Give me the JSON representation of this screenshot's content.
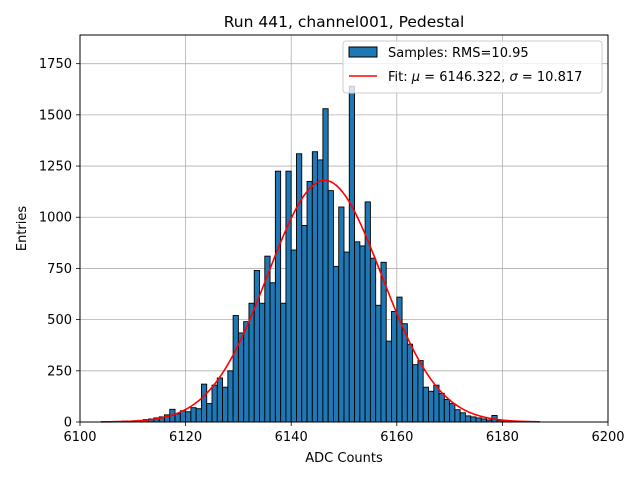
{
  "chart_data": {
    "type": "bar",
    "title": "Run 441, channel001, Pedestal",
    "xlabel": "ADC Counts",
    "ylabel": "Entries",
    "xlim": [
      6100,
      6200
    ],
    "ylim": [
      0,
      1890
    ],
    "xticks": [
      6100,
      6120,
      6140,
      6160,
      6180,
      6200
    ],
    "yticks": [
      0,
      250,
      500,
      750,
      1000,
      1250,
      1500,
      1750
    ],
    "grid": true,
    "legend_position": "top-right",
    "bin_width": 1,
    "histogram": {
      "name": "Samples: RMS=10.95",
      "color": "#1f77b4",
      "edgecolor": "#000000",
      "bin_starts": [
        6104,
        6105,
        6106,
        6107,
        6108,
        6109,
        6110,
        6111,
        6112,
        6113,
        6114,
        6115,
        6116,
        6117,
        6118,
        6119,
        6120,
        6121,
        6122,
        6123,
        6124,
        6125,
        6126,
        6127,
        6128,
        6129,
        6130,
        6131,
        6132,
        6133,
        6134,
        6135,
        6136,
        6137,
        6138,
        6139,
        6140,
        6141,
        6142,
        6143,
        6144,
        6145,
        6146,
        6147,
        6148,
        6149,
        6150,
        6151,
        6152,
        6153,
        6154,
        6155,
        6156,
        6157,
        6158,
        6159,
        6160,
        6161,
        6162,
        6163,
        6164,
        6165,
        6166,
        6167,
        6168,
        6169,
        6170,
        6171,
        6172,
        6173,
        6174,
        6175,
        6176,
        6177,
        6178,
        6179,
        6180,
        6181,
        6182,
        6183,
        6184,
        6185,
        6186
      ],
      "counts": [
        2,
        2,
        3,
        3,
        4,
        5,
        6,
        8,
        12,
        15,
        20,
        25,
        35,
        62,
        40,
        55,
        50,
        70,
        65,
        185,
        90,
        180,
        215,
        170,
        250,
        520,
        435,
        490,
        580,
        740,
        580,
        810,
        680,
        1225,
        580,
        1225,
        840,
        1310,
        960,
        1175,
        1320,
        1280,
        1530,
        1130,
        760,
        1050,
        830,
        1640,
        880,
        860,
        1075,
        800,
        570,
        780,
        395,
        540,
        610,
        480,
        380,
        280,
        300,
        170,
        150,
        180,
        140,
        110,
        90,
        60,
        45,
        30,
        25,
        20,
        15,
        10,
        32,
        8,
        6,
        4,
        3,
        3,
        2,
        2,
        2
      ]
    },
    "fit": {
      "name": "Fit: $\\mu$ = 6146.322, $\\sigma$ = 10.817",
      "label_parts": [
        "Fit: ",
        "μ",
        " = 6146.322, ",
        "σ",
        " = 10.817"
      ],
      "color": "#ff0000",
      "mu": 6146.322,
      "sigma": 10.817,
      "amplitude": 1180,
      "x_range": [
        6104,
        6187
      ]
    }
  }
}
